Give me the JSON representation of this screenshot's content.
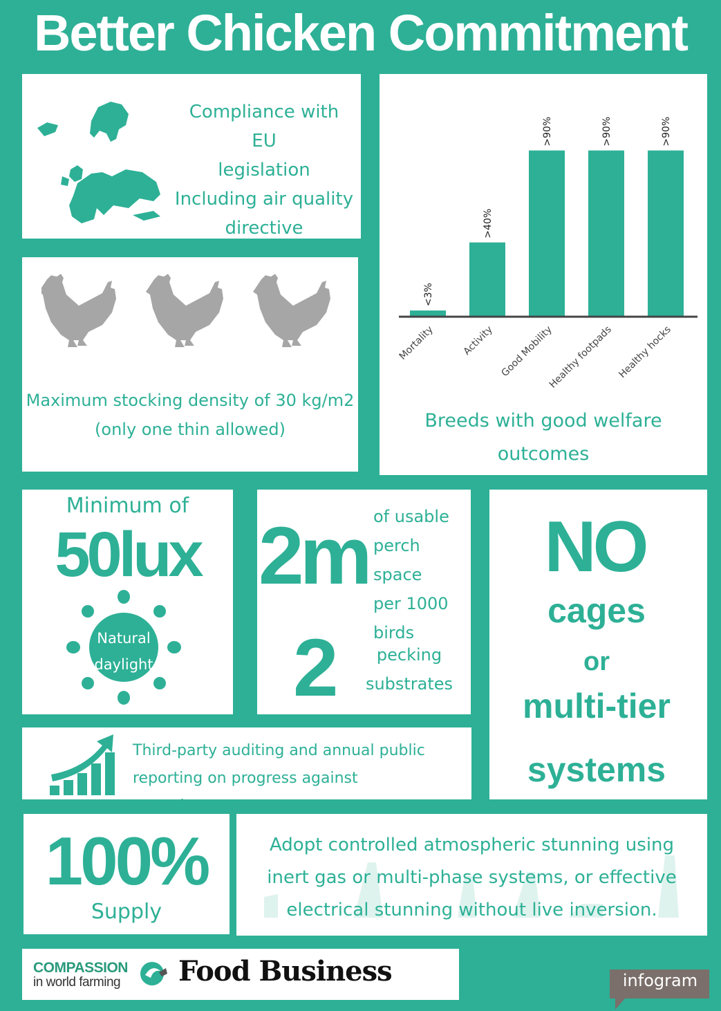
{
  "title": "Better Chicken Commitment",
  "colors": {
    "accent": "#2db096",
    "hen": "#a6a6a6",
    "white": "#ffffff",
    "dark_tag": "#7a6f6a"
  },
  "eu": {
    "lines": [
      "Compliance with EU",
      "legislation",
      "Including air quality",
      "directive"
    ],
    "icon": "europe-map-icon"
  },
  "stocking": {
    "lines": [
      "Maximum stocking density of 30 kg/m2",
      "(only one thin allowed)"
    ],
    "icon": "hen-icon"
  },
  "chart_data": {
    "type": "bar",
    "categories": [
      "Mortality",
      "Activity",
      "Good Mobility",
      "Healthy footpads",
      "Healthy hocks"
    ],
    "values": [
      3,
      40,
      90,
      90,
      90
    ],
    "labels": [
      "<3%",
      ">40%",
      ">90%",
      ">90%",
      ">90%"
    ],
    "ylim": [
      0,
      100
    ],
    "caption_lines": [
      "Breeds with good welfare",
      "outcomes"
    ]
  },
  "lux": {
    "min": "Minimum of",
    "big": "50lux",
    "sun_lines": [
      "Natural",
      "daylight"
    ],
    "icon": "sun-icon"
  },
  "perch": {
    "big": "2m",
    "lines": [
      "of usable",
      "perch space",
      "per 1000",
      "birds"
    ],
    "big2": "2",
    "lines2": [
      "pecking",
      "substrates"
    ]
  },
  "cages": {
    "no": "NO",
    "w1": "cages",
    "w2": "or",
    "w3": "multi-tier",
    "w4": "systems"
  },
  "audit": {
    "lines": [
      "Third-party auditing and annual public",
      "reporting on progress against commitments"
    ],
    "icon": "growth-chart-icon"
  },
  "supply": {
    "big": "100%",
    "label": "Supply"
  },
  "stun": {
    "lines": [
      "Adopt controlled atmospheric stunning using",
      "inert gas or multi-phase systems, or effective",
      "electrical stunning without live inversion."
    ]
  },
  "logos": {
    "ciwf_top": "COMPASSION",
    "ciwf_bottom": "in world farming",
    "fb": "Food Business"
  },
  "infogram": "infogram"
}
